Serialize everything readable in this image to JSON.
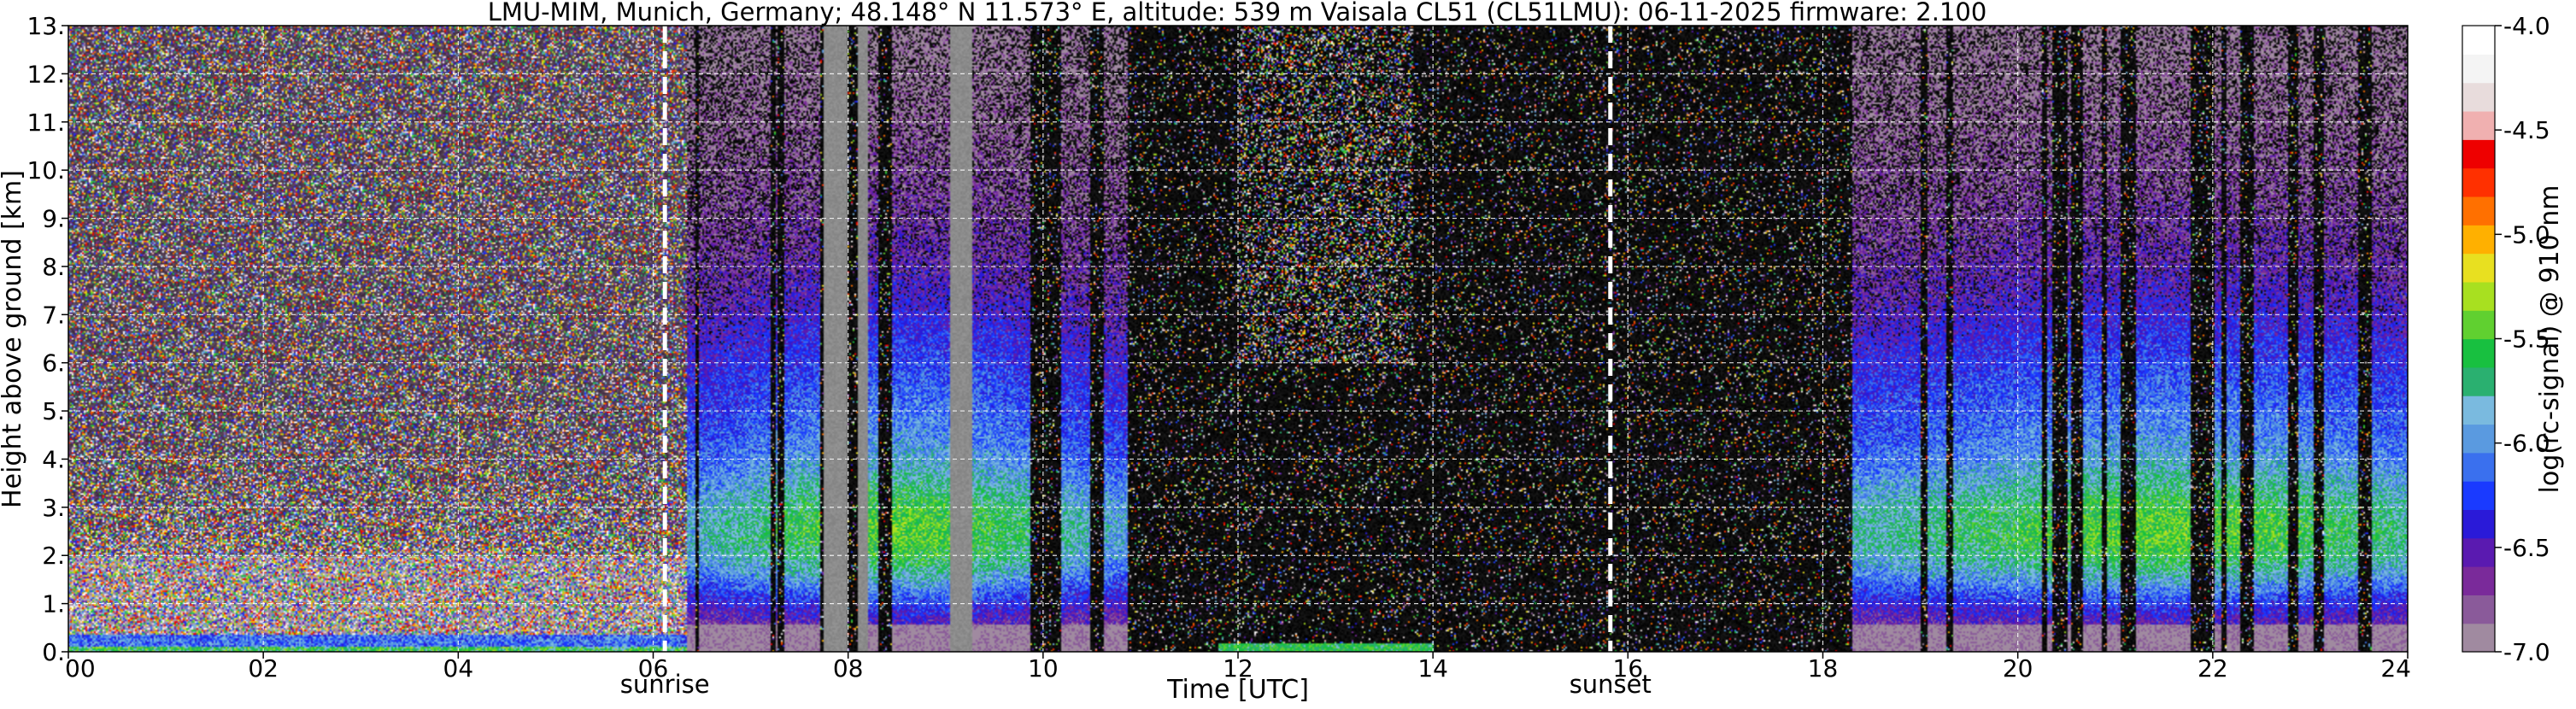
{
  "chart_data": {
    "type": "heatmap",
    "title": "LMU-MIM, Munich, Germany; 48.148° N 11.573° E, altitude: 539 m    Vaisala CL51 (CL51LMU): 06-11-2025    firmware: 2.100",
    "xlabel": "Time [UTC]",
    "ylabel": "Height above ground [km]",
    "xlim": [
      0,
      24
    ],
    "ylim": [
      0,
      13
    ],
    "x_ticks": [
      0,
      2,
      4,
      6,
      8,
      10,
      12,
      14,
      16,
      18,
      20,
      22,
      24
    ],
    "x_tick_labels": [
      "00",
      "02",
      "04",
      "06",
      "08",
      "10",
      "12",
      "14",
      "16",
      "18",
      "20",
      "22",
      "24"
    ],
    "y_ticks": [
      0,
      1,
      2,
      3,
      4,
      5,
      6,
      7,
      8,
      9,
      10,
      11,
      12,
      13
    ],
    "y_tick_labels": [
      "0.",
      "1.",
      "2.",
      "3.",
      "4.",
      "5.",
      "6.",
      "7.",
      "8.",
      "9.",
      "10.",
      "11.",
      "12.",
      "13."
    ],
    "grid": true,
    "colorbar": {
      "label": "log(rc-signal) @ 910 nm",
      "range": [
        -7.0,
        -4.0
      ],
      "ticks": [
        -7.0,
        -6.5,
        -6.0,
        -5.5,
        -5.0,
        -4.5,
        -4.0
      ],
      "tick_labels": [
        "-7.0",
        "-6.5",
        "-6.0",
        "-5.5",
        "-5.0",
        "-4.5",
        "-4.0"
      ],
      "colors": [
        "#a08aa0",
        "#8a5a9a",
        "#7a2a9a",
        "#5a1ab0",
        "#2a1ad8",
        "#1a3aff",
        "#3a70ee",
        "#5a9ae0",
        "#7abadf",
        "#2ab070",
        "#18c040",
        "#60d030",
        "#a8e020",
        "#e8e020",
        "#ffb000",
        "#ff7000",
        "#ff3000",
        "#ee0000",
        "#f0b0b0",
        "#e8dcdc",
        "#f4f4f4",
        "#ffffff"
      ]
    },
    "markers": [
      {
        "label": "sunrise",
        "x": 6.12
      },
      {
        "label": "sunset",
        "x": 15.82
      }
    ],
    "segments": [
      {
        "t0": 0.0,
        "t1": 6.35,
        "kind": "night"
      },
      {
        "t0": 6.35,
        "t1": 11.0,
        "kind": "aerosol"
      },
      {
        "t0": 11.0,
        "t1": 18.3,
        "kind": "dark"
      },
      {
        "t0": 18.3,
        "t1": 24.0,
        "kind": "aerosol"
      }
    ]
  }
}
